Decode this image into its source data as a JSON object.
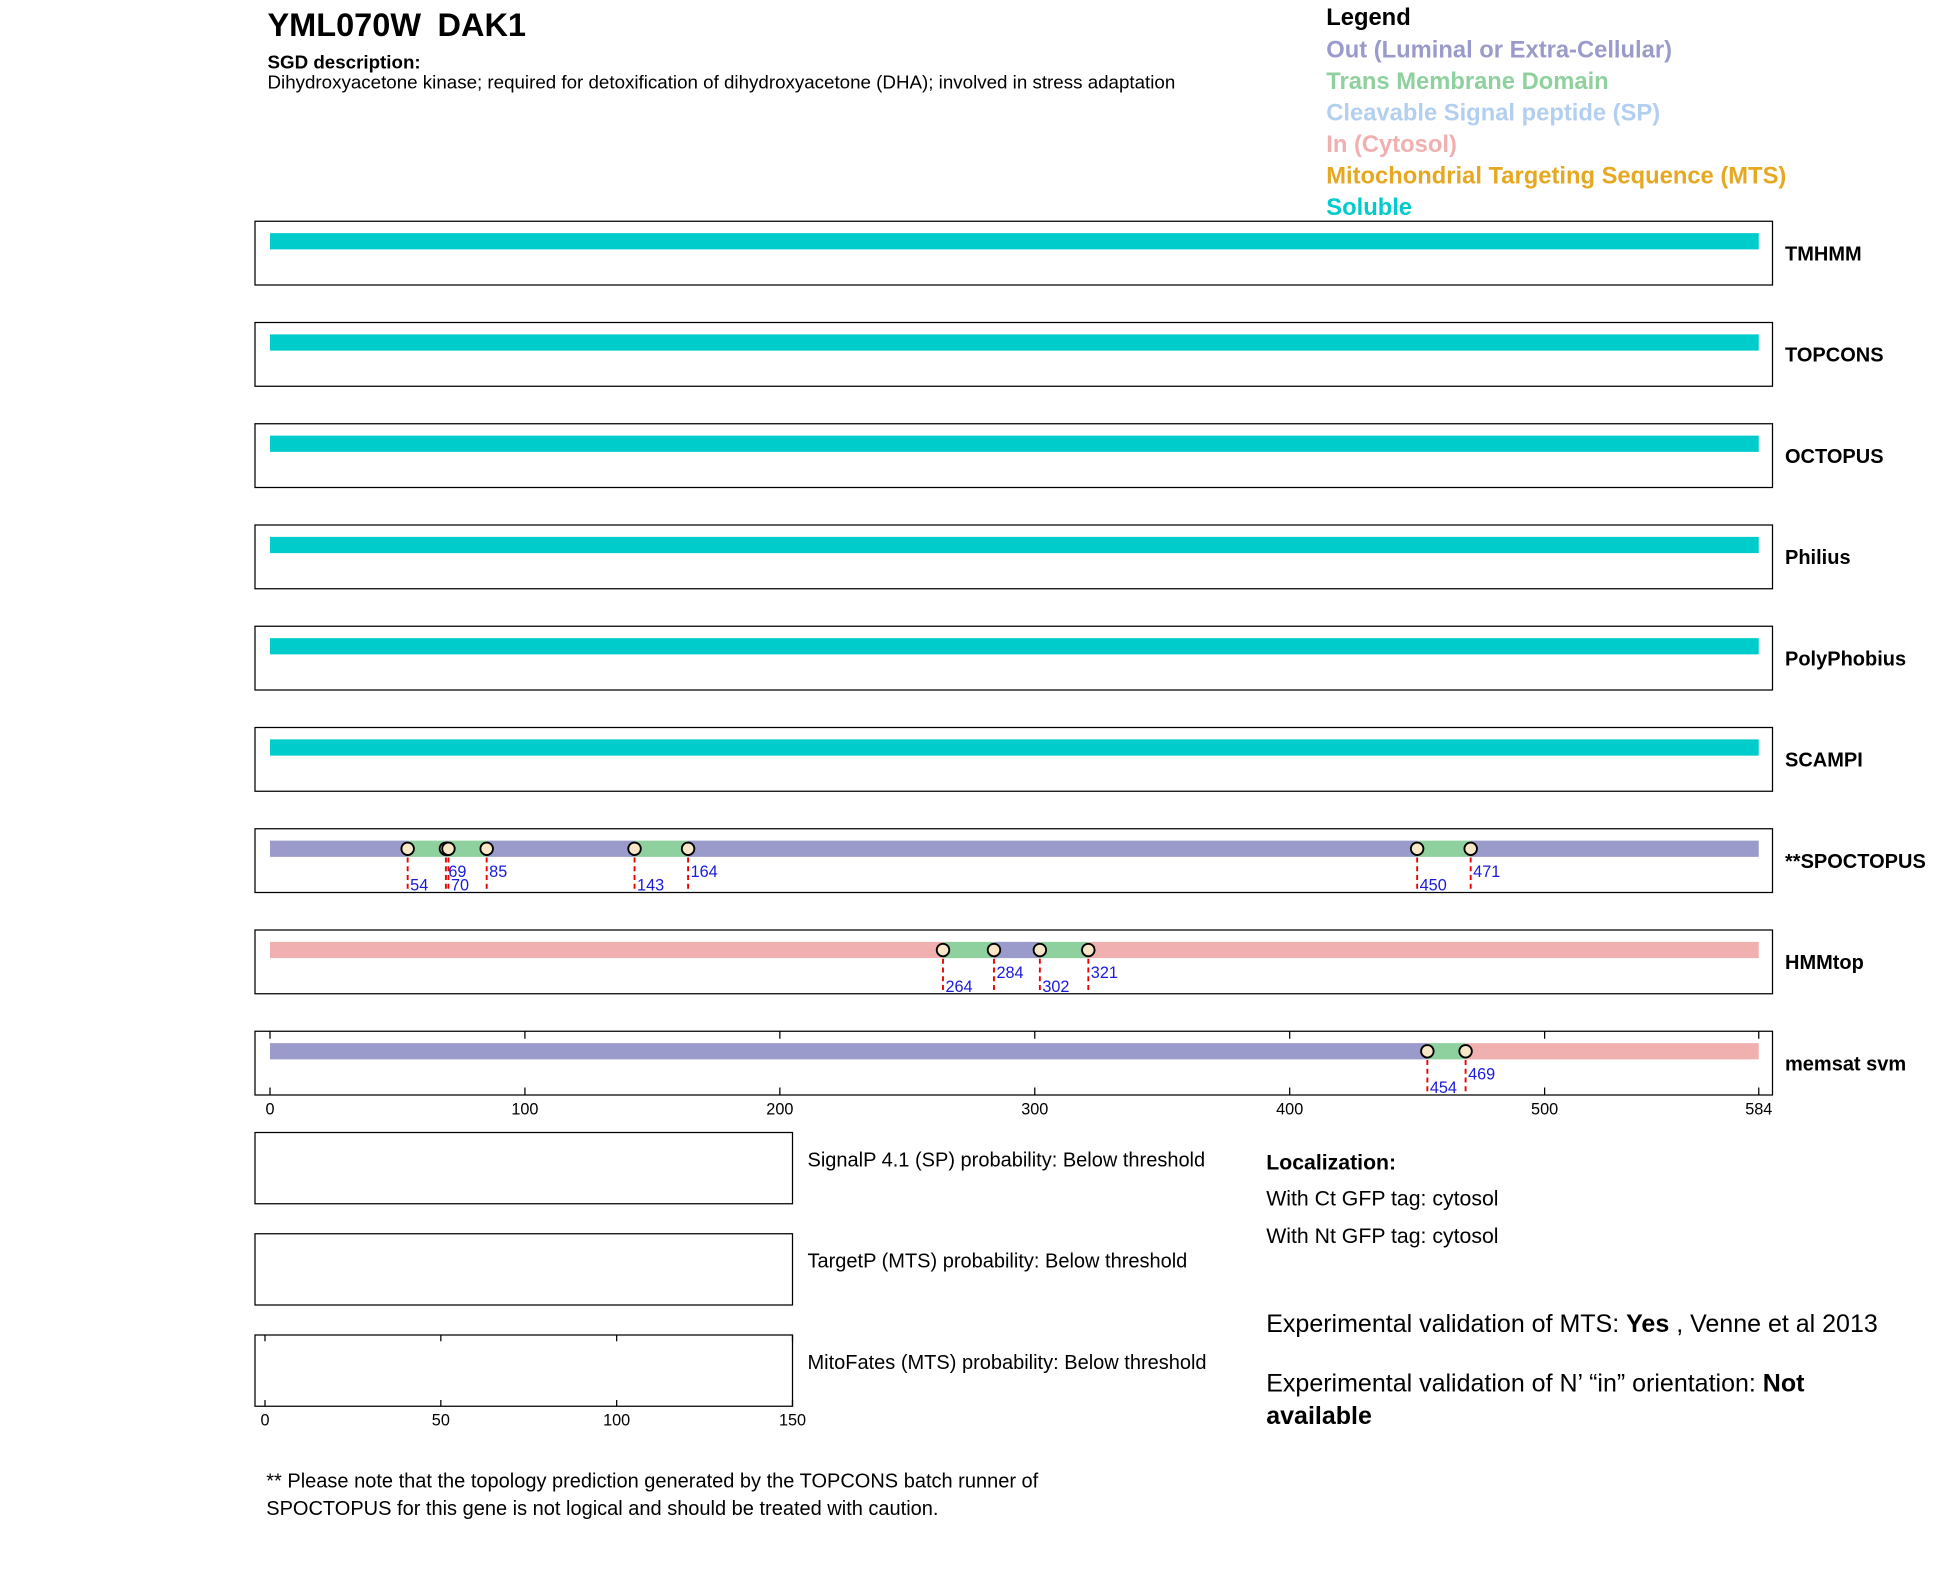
{
  "header": {
    "gene": "YML070W",
    "name": "DAK1",
    "description_label": "SGD description:",
    "description": "Dihydroxyacetone kinase; required for detoxification of dihydroxyacetone (DHA); involved in stress adaptation"
  },
  "legend": {
    "title": "Legend",
    "items": [
      {
        "label": "Out (Luminal or Extra-Cellular)",
        "color": "#9b9bcb"
      },
      {
        "label": "Trans Membrane Domain",
        "color": "#8fd19e"
      },
      {
        "label": "Cleavable Signal peptide (SP)",
        "color": "#b3cff0"
      },
      {
        "label": "In (Cytosol)",
        "color": "#f0b0b0"
      },
      {
        "label": "Mitochondrial Targeting Sequence (MTS)",
        "color": "#e6a820"
      },
      {
        "label": "Soluble",
        "color": "#00cccc"
      }
    ]
  },
  "axis": {
    "xlim": [
      0,
      584
    ],
    "xticks": [
      0,
      100,
      200,
      300,
      400,
      500,
      584
    ]
  },
  "tracks": [
    {
      "name": "TMHMM",
      "regions": [
        "#00cccc"
      ],
      "boundaries": []
    },
    {
      "name": "TOPCONS",
      "regions": [
        "#00cccc"
      ],
      "boundaries": []
    },
    {
      "name": "OCTOPUS",
      "regions": [
        "#00cccc"
      ],
      "boundaries": []
    },
    {
      "name": "Philius",
      "regions": [
        "#00cccc"
      ],
      "boundaries": []
    },
    {
      "name": "PolyPhobius",
      "regions": [
        "#00cccc"
      ],
      "boundaries": []
    },
    {
      "name": "SCAMPI",
      "regions": [
        "#00cccc"
      ],
      "boundaries": []
    },
    {
      "name": "**SPOCTOPUS",
      "regions": [
        "#9b9bcb",
        "#8fd19e",
        "#9b9bcb",
        "#8fd19e",
        "#9b9bcb",
        "#8fd19e",
        "#9b9bcb",
        "#8fd19e",
        "#9b9bcb"
      ],
      "boundaries": [
        54,
        69,
        70,
        85,
        143,
        164,
        450,
        471
      ]
    },
    {
      "name": "HMMtop",
      "regions": [
        "#f0b0b0",
        "#8fd19e",
        "#9b9bcb",
        "#8fd19e",
        "#f0b0b0"
      ],
      "boundaries": [
        264,
        284,
        302,
        321
      ]
    },
    {
      "name": "memsat svm",
      "regions": [
        "#9b9bcb",
        "#8fd19e",
        "#f0b0b0"
      ],
      "boundaries": [
        454,
        469
      ]
    }
  ],
  "probabilities": [
    {
      "text": "SignalP 4.1 (SP) probability: Below threshold"
    },
    {
      "text": "TargetP (MTS) probability: Below threshold"
    },
    {
      "text": "MitoFates (MTS) probability: Below threshold",
      "xlim": [
        0,
        150
      ],
      "xticks": [
        0,
        50,
        100,
        150
      ]
    }
  ],
  "localization": {
    "title": "Localization:",
    "ct": "With Ct GFP tag: cytosol",
    "nt": "With Nt GFP tag: cytosol"
  },
  "validation": {
    "mts_label": "Experimental validation of MTS:",
    "mts_value": "Yes",
    "mts_source": ", Venne et al 2013",
    "orientation_label": "Experimental validation of N’ “in” orientation:",
    "orientation_value": "Not available"
  },
  "footnote": "** Please note that the topology prediction generated by the TOPCONS batch runner of SPOCTOPUS for this gene is not logical and should be treated with caution."
}
